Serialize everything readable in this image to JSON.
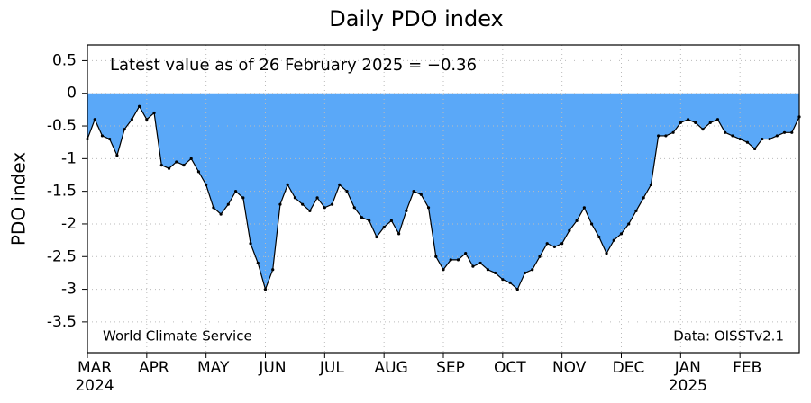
{
  "chart_data": {
    "type": "area",
    "title": "Daily PDO index",
    "y_label": "PDO index",
    "annotation": "Latest value as of 26 February 2025 = −0.36",
    "source_left": "World Climate Service",
    "source_right": "Data: OISSTv2.1",
    "color": "#5aa8f8",
    "line_color": "#000000",
    "grid": true,
    "ylim": [
      -3.97,
      0.74
    ],
    "yticks": [
      0.5,
      0,
      -0.5,
      -1,
      -1.5,
      -2,
      -2.5,
      -3,
      -3.5
    ],
    "categories": [
      "MAR",
      null,
      null,
      null,
      null,
      null,
      null,
      null,
      "APR",
      null,
      null,
      null,
      null,
      null,
      null,
      null,
      "MAY",
      null,
      null,
      null,
      null,
      null,
      null,
      null,
      "JUN",
      null,
      null,
      null,
      null,
      null,
      null,
      null,
      "JUL",
      null,
      null,
      null,
      null,
      null,
      null,
      null,
      "AUG",
      null,
      null,
      null,
      null,
      null,
      null,
      null,
      "SEP",
      null,
      null,
      null,
      null,
      null,
      null,
      null,
      "OCT",
      null,
      null,
      null,
      null,
      null,
      null,
      null,
      "NOV",
      null,
      null,
      null,
      null,
      null,
      null,
      null,
      "DEC",
      null,
      null,
      null,
      null,
      null,
      null,
      null,
      "JAN",
      null,
      null,
      null,
      null,
      null,
      null,
      null,
      "FEB",
      null,
      null,
      null,
      null,
      null,
      null,
      null,
      null
    ],
    "year_labels": [
      "2024",
      null,
      null,
      null,
      null,
      null,
      null,
      null,
      null,
      null,
      null,
      null,
      null,
      null,
      null,
      null,
      null,
      null,
      null,
      null,
      null,
      null,
      null,
      null,
      null,
      null,
      null,
      null,
      null,
      null,
      null,
      null,
      null,
      null,
      null,
      null,
      null,
      null,
      null,
      null,
      null,
      null,
      null,
      null,
      null,
      null,
      null,
      null,
      null,
      null,
      null,
      null,
      null,
      null,
      null,
      null,
      null,
      null,
      null,
      null,
      null,
      null,
      null,
      null,
      null,
      null,
      null,
      null,
      null,
      null,
      null,
      null,
      null,
      null,
      null,
      null,
      null,
      null,
      null,
      null,
      "2025",
      null,
      null,
      null,
      null,
      null,
      null,
      null,
      null,
      null,
      null,
      null,
      null,
      null,
      null,
      null,
      null
    ],
    "values": [
      -0.7,
      -0.4,
      -0.65,
      -0.7,
      -0.95,
      -0.55,
      -0.4,
      -0.2,
      -0.4,
      -0.3,
      -1.1,
      -1.15,
      -1.05,
      -1.1,
      -1.0,
      -1.2,
      -1.4,
      -1.75,
      -1.85,
      -1.7,
      -1.5,
      -1.6,
      -2.3,
      -2.6,
      -3.0,
      -2.7,
      -1.7,
      -1.4,
      -1.6,
      -1.7,
      -1.8,
      -1.6,
      -1.75,
      -1.7,
      -1.4,
      -1.5,
      -1.75,
      -1.9,
      -1.95,
      -2.2,
      -2.05,
      -1.95,
      -2.15,
      -1.8,
      -1.5,
      -1.55,
      -1.75,
      -2.5,
      -2.7,
      -2.55,
      -2.55,
      -2.45,
      -2.65,
      -2.6,
      -2.7,
      -2.75,
      -2.85,
      -2.9,
      -3.0,
      -2.75,
      -2.7,
      -2.5,
      -2.3,
      -2.35,
      -2.3,
      -2.1,
      -1.95,
      -1.75,
      -2.0,
      -2.2,
      -2.45,
      -2.25,
      -2.15,
      -2.0,
      -1.8,
      -1.6,
      -1.4,
      -0.65,
      -0.65,
      -0.6,
      -0.45,
      -0.4,
      -0.45,
      -0.55,
      -0.45,
      -0.4,
      -0.6,
      -0.65,
      -0.7,
      -0.75,
      -0.85,
      -0.7,
      -0.7,
      -0.65,
      -0.6,
      -0.6,
      -0.36
    ]
  }
}
